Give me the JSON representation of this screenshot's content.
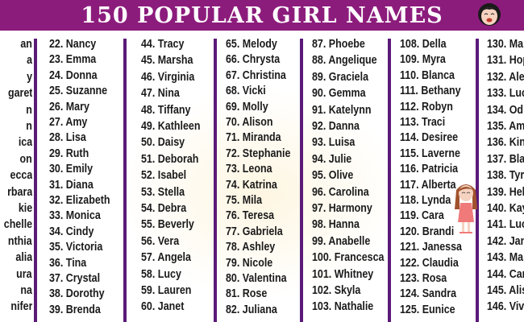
{
  "header": {
    "title": "150 POPULAR GIRL NAMES",
    "background": "#8c1c7c",
    "icon": "girl-face-emoji-icon"
  },
  "colors": {
    "divider": "#5b1a78",
    "text": "#1a1a1a"
  },
  "columns": [
    {
      "items": [
        "an",
        "a",
        "y",
        "garet",
        "n",
        "n",
        "ica",
        "on",
        "ecca",
        "rbara",
        "kie",
        "chelle",
        "nthia",
        "alia",
        "ura",
        "na",
        "nifer"
      ]
    },
    {
      "items": [
        "22. Nancy",
        "23. Emma",
        "24. Donna",
        "25. Suzanne",
        "26. Mary",
        "27. Amy",
        "28. Lisa",
        "29. Ruth",
        "30. Emily",
        "31. Diana",
        "32. Elizabeth",
        "33. Monica",
        "34. Cindy",
        "35. Victoria",
        "36. Tina",
        "37. Crystal",
        "38. Dorothy",
        "39. Brenda"
      ]
    },
    {
      "items": [
        "44. Tracy",
        "45. Marsha",
        "46. Virginia",
        "47. Nina",
        "48. Tiffany",
        "49. Kathleen",
        "50. Daisy",
        "51. Deborah",
        "52. Isabel",
        "53. Stella",
        "54. Debra",
        "55. Beverly",
        "56. Vera",
        "57. Angela",
        "58. Lucy",
        "59. Lauren",
        "60. Janet"
      ]
    },
    {
      "items": [
        "65. Melody",
        "66. Chrysta",
        "67. Christina",
        "68. Vicki",
        "69. Molly",
        "70. Alison",
        "71. Miranda",
        "72. Stephanie",
        "73. Leona",
        "74. Katrina",
        "75. Mila",
        "76. Teresa",
        "77. Gabriela",
        "78. Ashley",
        "79. Nicole",
        "80. Valentina",
        "81. Rose",
        "82. Juliana"
      ]
    },
    {
      "items": [
        "87. Phoebe",
        "88. Angelique",
        "89. Graciela",
        "90. Gemma",
        "91. Katelynn",
        "92. Danna",
        "93. Luisa",
        "94. Julie",
        "95. Olive",
        "96. Carolina",
        "97. Harmony",
        "98. Hanna",
        "99. Anabelle",
        "100. Francesca",
        "101. Whitney",
        "102. Skyla",
        "103. Nathalie"
      ]
    },
    {
      "items": [
        "108. Della",
        "109. Myra",
        "110. Blanca",
        "111. Bethany",
        "112. Robyn",
        "113. Traci",
        "114. Desiree",
        "115. Laverne",
        "116. Patricia",
        "117. Alberta",
        "118. Lynda",
        "119. Cara",
        "120. Brandi",
        "121. Janessa",
        "122. Claudia",
        "123. Rosa",
        "124. Sandra",
        "125. Eunice"
      ]
    },
    {
      "items": [
        "130. Ma",
        "131. Hop",
        "132. Ale",
        "133. Luc",
        "134. Od",
        "135. Am",
        "136. Kin",
        "137. Bla",
        "138. Tyr",
        "139. Hel",
        "140. Kay",
        "141. Luc",
        "142. Jan",
        "143. Ma",
        "144. Car",
        "145. Alis",
        "146. Viv"
      ]
    }
  ],
  "illustration": "girl-in-pink-dress-icon"
}
